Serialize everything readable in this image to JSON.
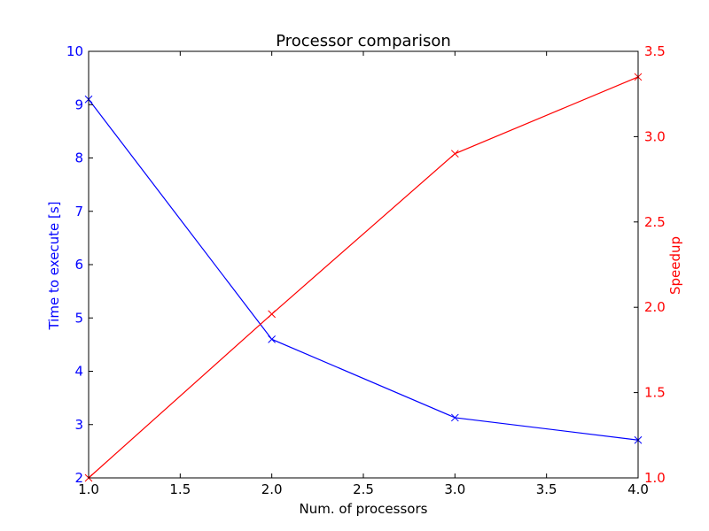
{
  "chart_data": {
    "type": "line",
    "title": "Processor comparison",
    "xlabel": "Num. of processors",
    "x": [
      1.0,
      2.0,
      3.0,
      4.0
    ],
    "xlim": [
      1.0,
      4.0
    ],
    "xticks": [
      "1.0",
      "1.5",
      "2.0",
      "2.5",
      "3.0",
      "3.5",
      "4.0"
    ],
    "left_axis": {
      "label": "Time to execute [s]",
      "ylim": [
        2,
        10
      ],
      "ticks": [
        "2",
        "3",
        "4",
        "5",
        "6",
        "7",
        "8",
        "9",
        "10"
      ],
      "color": "#0000ff"
    },
    "right_axis": {
      "label": "Speedup",
      "ylim": [
        1.0,
        3.5
      ],
      "ticks": [
        "1.0",
        "1.5",
        "2.0",
        "2.5",
        "3.0",
        "3.5"
      ],
      "color": "#ff0000"
    },
    "series": [
      {
        "axis": "left",
        "color": "#0000ff",
        "marker": "x",
        "values": [
          9.1,
          4.6,
          3.13,
          2.71
        ]
      },
      {
        "axis": "right",
        "color": "#ff0000",
        "marker": "x",
        "values": [
          1.0,
          1.96,
          2.9,
          3.35
        ]
      }
    ],
    "grid": false,
    "legend": "none"
  }
}
